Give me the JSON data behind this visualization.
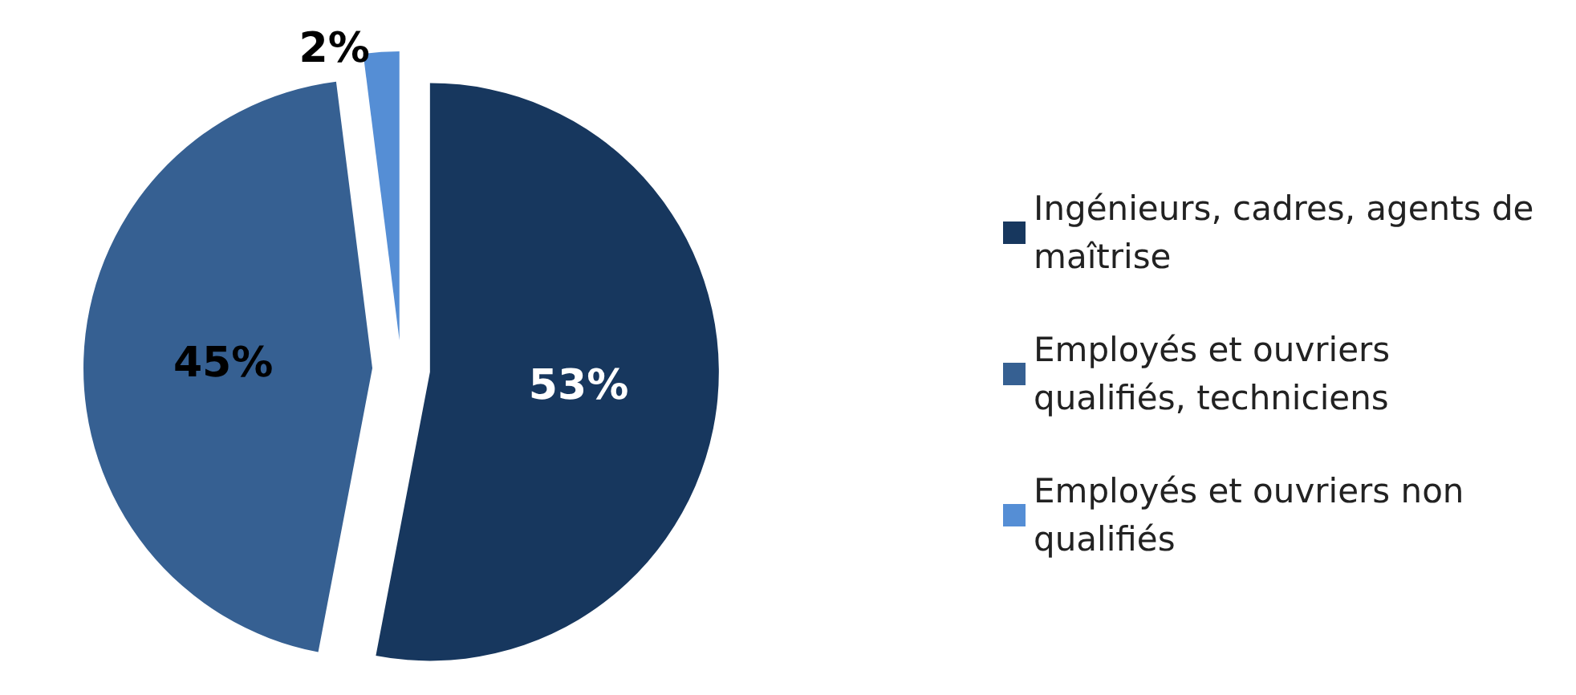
{
  "chart_data": {
    "type": "pie",
    "categories": [
      "Ingénieurs, cadres, agents de maîtrise",
      "Employés et ouvriers qualifiés, techniciens",
      "Employés et ouvriers non qualifiés"
    ],
    "values": [
      53,
      45,
      2
    ],
    "value_labels": [
      "53%",
      "45%",
      "2%"
    ],
    "colors": [
      "#17375e",
      "#366092",
      "#558ed5"
    ],
    "legend": "right"
  }
}
